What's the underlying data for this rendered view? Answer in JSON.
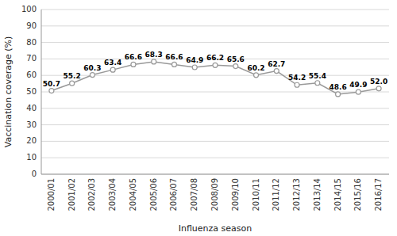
{
  "chart_data": {
    "type": "line",
    "categories": [
      "2000/01",
      "2001/02",
      "2002/03",
      "2003/04",
      "2004/05",
      "2005/06",
      "2006/07",
      "2007/08",
      "2008/09",
      "2009/10",
      "2010/11",
      "2011/12",
      "2012/13",
      "2013/14",
      "2014/15",
      "2015/16",
      "2016/17"
    ],
    "values": [
      50.7,
      55.2,
      60.3,
      63.4,
      66.6,
      68.3,
      66.6,
      64.9,
      66.2,
      65.6,
      60.2,
      62.7,
      54.2,
      55.4,
      48.6,
      49.9,
      52.0
    ],
    "value_labels": [
      "50.7",
      "55.2",
      "60.3",
      "63.4",
      "66.6",
      "68.3",
      "66.6",
      "64.9",
      "66.2",
      "65.6",
      "60.2",
      "62.7",
      "54.2",
      "55.4",
      "48.6",
      "49.9",
      "52.0"
    ],
    "xlabel": "Influenza season",
    "ylabel": "Vaccination coverage (%)",
    "ylim": [
      0,
      100
    ],
    "yticks": [
      0,
      10,
      20,
      30,
      40,
      50,
      60,
      70,
      80,
      90,
      100
    ],
    "color": "#999999",
    "marker": "circle",
    "line_style": "solid",
    "data_labels": true,
    "grid": true
  }
}
